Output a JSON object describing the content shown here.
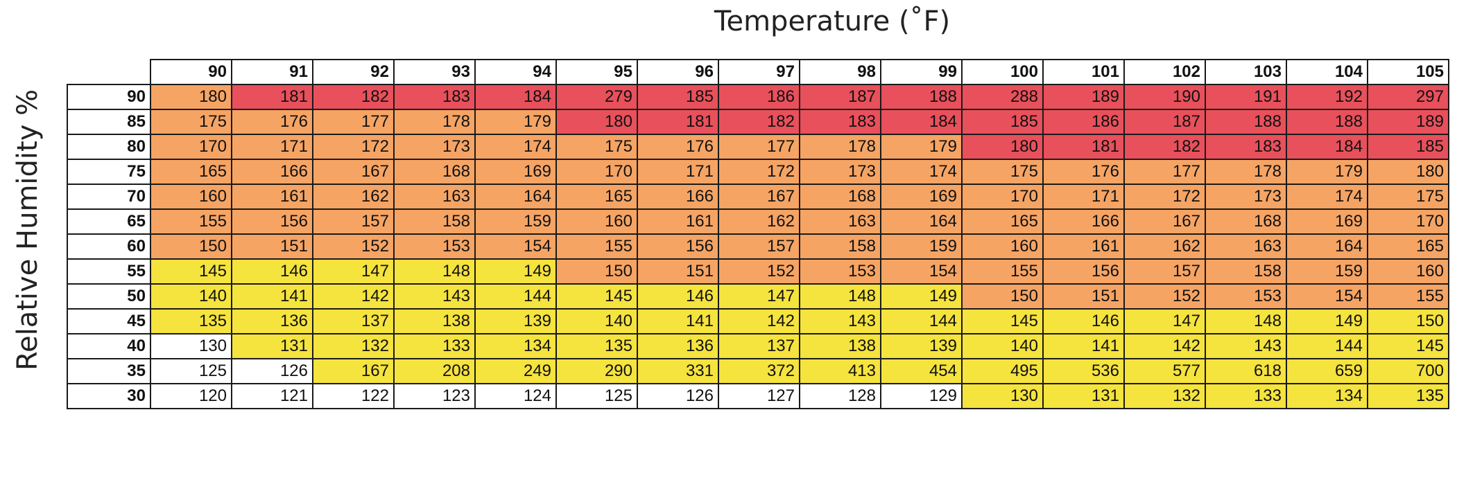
{
  "chart_data": {
    "type": "heatmap",
    "xlabel": "Temperature (˚F)",
    "ylabel": "Relative Humidity %",
    "x": [
      90,
      91,
      92,
      93,
      94,
      95,
      96,
      97,
      98,
      99,
      100,
      101,
      102,
      103,
      104,
      105
    ],
    "y": [
      90,
      85,
      80,
      75,
      70,
      65,
      60,
      55,
      50,
      45,
      40,
      35,
      30
    ],
    "values": [
      [
        180,
        181,
        182,
        183,
        184,
        279,
        185,
        186,
        187,
        188,
        288,
        189,
        190,
        191,
        192,
        297
      ],
      [
        175,
        176,
        177,
        178,
        179,
        180,
        181,
        182,
        183,
        184,
        185,
        186,
        187,
        188,
        188,
        189
      ],
      [
        170,
        171,
        172,
        173,
        174,
        175,
        176,
        177,
        178,
        179,
        180,
        181,
        182,
        183,
        184,
        185
      ],
      [
        165,
        166,
        167,
        168,
        169,
        170,
        171,
        172,
        173,
        174,
        175,
        176,
        177,
        178,
        179,
        180
      ],
      [
        160,
        161,
        162,
        163,
        164,
        165,
        166,
        167,
        168,
        169,
        170,
        171,
        172,
        173,
        174,
        175
      ],
      [
        155,
        156,
        157,
        158,
        159,
        160,
        161,
        162,
        163,
        164,
        165,
        166,
        167,
        168,
        169,
        170
      ],
      [
        150,
        151,
        152,
        153,
        154,
        155,
        156,
        157,
        158,
        159,
        160,
        161,
        162,
        163,
        164,
        165
      ],
      [
        145,
        146,
        147,
        148,
        149,
        150,
        151,
        152,
        153,
        154,
        155,
        156,
        157,
        158,
        159,
        160
      ],
      [
        140,
        141,
        142,
        143,
        144,
        145,
        146,
        147,
        148,
        149,
        150,
        151,
        152,
        153,
        154,
        155
      ],
      [
        135,
        136,
        137,
        138,
        139,
        140,
        141,
        142,
        143,
        144,
        145,
        146,
        147,
        148,
        149,
        150
      ],
      [
        130,
        131,
        132,
        133,
        134,
        135,
        136,
        137,
        138,
        139,
        140,
        141,
        142,
        143,
        144,
        145
      ],
      [
        125,
        126,
        167,
        208,
        249,
        290,
        331,
        372,
        413,
        454,
        495,
        536,
        577,
        618,
        659,
        700
      ],
      [
        120,
        121,
        122,
        123,
        124,
        125,
        126,
        127,
        128,
        129,
        130,
        131,
        132,
        133,
        134,
        135
      ]
    ],
    "cell_colors": {
      "red": "#e8505b",
      "orange": "#f5a464",
      "yellow": "#f5e33e",
      "white": "#ffffff"
    },
    "color_grid": [
      [
        "o",
        "r",
        "r",
        "r",
        "r",
        "r",
        "r",
        "r",
        "r",
        "r",
        "r",
        "r",
        "r",
        "r",
        "r",
        "r"
      ],
      [
        "o",
        "o",
        "o",
        "o",
        "o",
        "r",
        "r",
        "r",
        "r",
        "r",
        "r",
        "r",
        "r",
        "r",
        "r",
        "r"
      ],
      [
        "o",
        "o",
        "o",
        "o",
        "o",
        "o",
        "o",
        "o",
        "o",
        "o",
        "r",
        "r",
        "r",
        "r",
        "r",
        "r"
      ],
      [
        "o",
        "o",
        "o",
        "o",
        "o",
        "o",
        "o",
        "o",
        "o",
        "o",
        "o",
        "o",
        "o",
        "o",
        "o",
        "o"
      ],
      [
        "o",
        "o",
        "o",
        "o",
        "o",
        "o",
        "o",
        "o",
        "o",
        "o",
        "o",
        "o",
        "o",
        "o",
        "o",
        "o"
      ],
      [
        "o",
        "o",
        "o",
        "o",
        "o",
        "o",
        "o",
        "o",
        "o",
        "o",
        "o",
        "o",
        "o",
        "o",
        "o",
        "o"
      ],
      [
        "o",
        "o",
        "o",
        "o",
        "o",
        "o",
        "o",
        "o",
        "o",
        "o",
        "o",
        "o",
        "o",
        "o",
        "o",
        "o"
      ],
      [
        "y",
        "y",
        "y",
        "y",
        "y",
        "o",
        "o",
        "o",
        "o",
        "o",
        "o",
        "o",
        "o",
        "o",
        "o",
        "o"
      ],
      [
        "y",
        "y",
        "y",
        "y",
        "y",
        "y",
        "y",
        "y",
        "y",
        "y",
        "o",
        "o",
        "o",
        "o",
        "o",
        "o"
      ],
      [
        "y",
        "y",
        "y",
        "y",
        "y",
        "y",
        "y",
        "y",
        "y",
        "y",
        "y",
        "y",
        "y",
        "y",
        "y",
        "y"
      ],
      [
        "w",
        "y",
        "y",
        "y",
        "y",
        "y",
        "y",
        "y",
        "y",
        "y",
        "y",
        "y",
        "y",
        "y",
        "y",
        "y"
      ],
      [
        "w",
        "w",
        "y",
        "y",
        "y",
        "y",
        "y",
        "y",
        "y",
        "y",
        "y",
        "y",
        "y",
        "y",
        "y",
        "y"
      ],
      [
        "w",
        "w",
        "w",
        "w",
        "w",
        "w",
        "w",
        "w",
        "w",
        "w",
        "y",
        "y",
        "y",
        "y",
        "y",
        "y"
      ]
    ]
  }
}
